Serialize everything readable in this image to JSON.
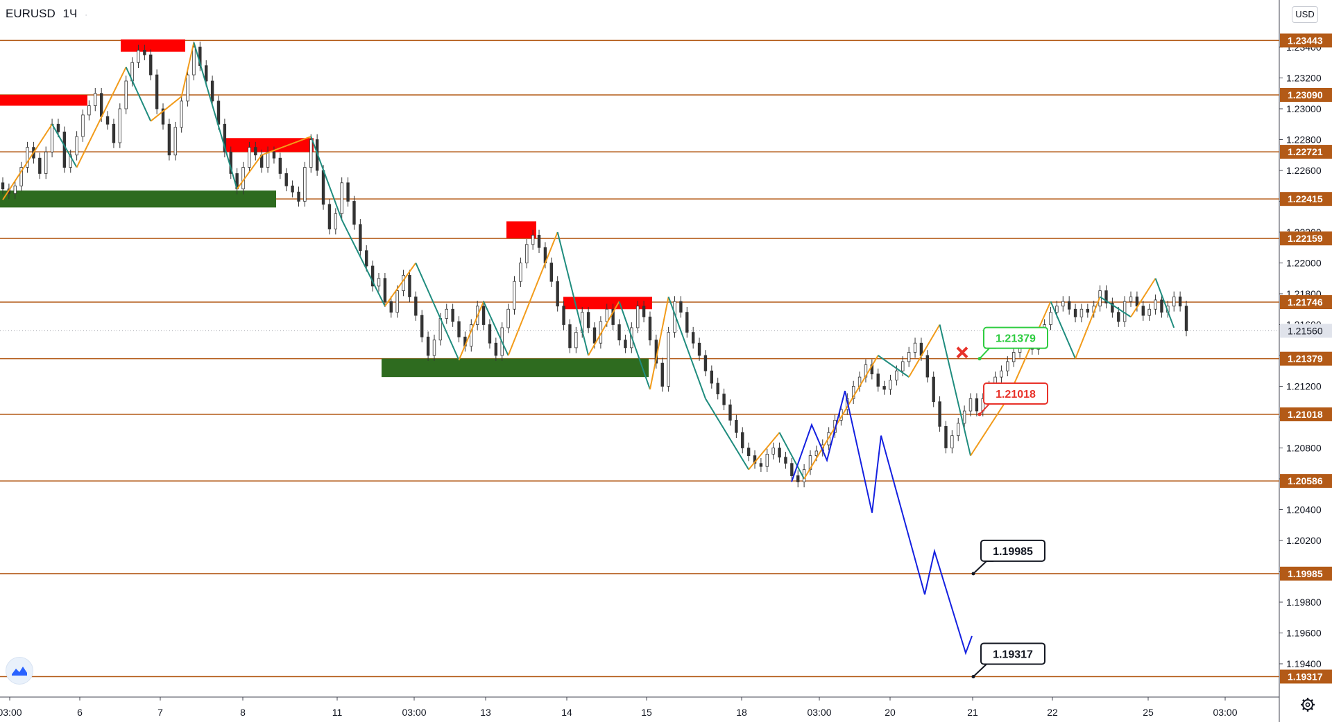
{
  "header": {
    "symbol": "EURUSD",
    "interval": "1Ч",
    "dot": "·"
  },
  "scale": {
    "currency": "USD"
  },
  "colors": {
    "level": "#b35a17",
    "bull": "#333333",
    "bear": "#333333",
    "zz_up": "#f29b1a",
    "zz_down": "#1f8c7e",
    "forecast": "#1420e0",
    "resist": "#ff0000",
    "support": "#2e6b1f",
    "green_lbl": "#2ecc40",
    "red_lbl": "#e8322a"
  },
  "icons": {
    "logo": "tradingview-logo-icon",
    "settings": "gear-icon"
  },
  "chart_data": {
    "type": "candlestick",
    "title": "EURUSD",
    "interval": "1Ч",
    "ylim": [
      1.193,
      1.2355
    ],
    "price_ticks": [
      "1.23400",
      "1.23200",
      "1.23000",
      "1.22800",
      "1.22600",
      "1.22400",
      "1.22200",
      "1.22000",
      "1.21800",
      "1.21600",
      "1.21400",
      "1.21200",
      "1.21000",
      "1.20800",
      "1.20600",
      "1.20400",
      "1.20200",
      "1.20000",
      "1.19800",
      "1.19600",
      "1.19400"
    ],
    "time_ticks": [
      "03:00",
      "6",
      "7",
      "8",
      "11",
      "03:00",
      "13",
      "14",
      "15",
      "18",
      "03:00",
      "20",
      "21",
      "22",
      "25",
      "03:00"
    ],
    "current_price": "1.21560",
    "levels": [
      "1.23443",
      "1.23090",
      "1.22721",
      "1.22415",
      "1.22159",
      "1.21746",
      "1.21379",
      "1.21018",
      "1.20586",
      "1.19985",
      "1.19317"
    ],
    "callouts": [
      {
        "text": "1.21379",
        "style": "green"
      },
      {
        "text": "1.21018",
        "style": "red"
      },
      {
        "text": "1.19985",
        "style": "black"
      },
      {
        "text": "1.19317",
        "style": "black"
      }
    ],
    "resistance_zones": [
      {
        "from_day": "5",
        "to_day": "6",
        "low": 1.2302,
        "high": 1.2309
      },
      {
        "from_day": "6",
        "to_day": "7",
        "low": 1.2337,
        "high": 1.2345
      },
      {
        "from_day": "7",
        "to_day": "8",
        "low": 1.2272,
        "high": 1.2281
      },
      {
        "from_day": "13",
        "to_day": "13",
        "low": 1.2216,
        "high": 1.2227
      },
      {
        "from_day": "14",
        "to_day": "15",
        "low": 1.217,
        "high": 1.2178
      }
    ],
    "support_zones": [
      {
        "from_day": "5",
        "to_day": "8",
        "low": 1.2236,
        "high": 1.2247
      },
      {
        "from_day": "11",
        "to_day": "15",
        "low": 1.2126,
        "high": 1.2138
      }
    ],
    "candles_close": [
      1.2248,
      1.2245,
      1.225,
      1.2262,
      1.2275,
      1.2268,
      1.2258,
      1.2272,
      1.229,
      1.2285,
      1.2262,
      1.227,
      1.2282,
      1.2296,
      1.2302,
      1.231,
      1.2295,
      1.229,
      1.2278,
      1.23,
      1.2318,
      1.233,
      1.2338,
      1.2335,
      1.2322,
      1.23,
      1.229,
      1.227,
      1.2288,
      1.2305,
      1.2322,
      1.234,
      1.2328,
      1.2318,
      1.2305,
      1.229,
      1.2272,
      1.2258,
      1.2248,
      1.2262,
      1.2275,
      1.227,
      1.2262,
      1.2272,
      1.2268,
      1.2258,
      1.225,
      1.2246,
      1.224,
      1.2262,
      1.228,
      1.226,
      1.2238,
      1.2222,
      1.2232,
      1.2252,
      1.224,
      1.2225,
      1.2208,
      1.2198,
      1.2185,
      1.219,
      1.2175,
      1.2168,
      1.2182,
      1.2192,
      1.2178,
      1.2166,
      1.2152,
      1.214,
      1.215,
      1.2164,
      1.217,
      1.2162,
      1.2152,
      1.2146,
      1.216,
      1.2172,
      1.216,
      1.2148,
      1.214,
      1.2158,
      1.217,
      1.2188,
      1.22,
      1.2212,
      1.2218,
      1.221,
      1.22,
      1.2188,
      1.2172,
      1.216,
      1.2145,
      1.2155,
      1.2168,
      1.2158,
      1.2148,
      1.2162,
      1.217,
      1.216,
      1.215,
      1.2145,
      1.2158,
      1.2172,
      1.2165,
      1.215,
      1.2135,
      1.212,
      1.2155,
      1.2175,
      1.2168,
      1.2155,
      1.2148,
      1.214,
      1.213,
      1.2122,
      1.2115,
      1.2108,
      1.2098,
      1.209,
      1.208,
      1.2075,
      1.207,
      1.2068,
      1.2076,
      1.208,
      1.2074,
      1.207,
      1.2062,
      1.2058,
      1.2066,
      1.2075,
      1.2078,
      1.2082,
      1.209,
      1.2098,
      1.2105,
      1.2112,
      1.212,
      1.2126,
      1.2134,
      1.2128,
      1.212,
      1.2118,
      1.2124,
      1.213,
      1.2136,
      1.2142,
      1.2148,
      1.214,
      1.2126,
      1.211,
      1.2094,
      1.208,
      1.2088,
      1.2096,
      1.2104,
      1.2112,
      1.2104,
      1.2112,
      1.212,
      1.2126,
      1.213,
      1.2136,
      1.2142,
      1.2148,
      1.2152,
      1.2144,
      1.215,
      1.216,
      1.2168,
      1.2172,
      1.2175,
      1.217,
      1.2165,
      1.217,
      1.2168,
      1.2172,
      1.2182,
      1.2174,
      1.2168,
      1.2162,
      1.2175,
      1.2178,
      1.2172,
      1.2166,
      1.217,
      1.2176,
      1.2168,
      1.2172,
      1.2178,
      1.2172,
      1.2156
    ]
  }
}
